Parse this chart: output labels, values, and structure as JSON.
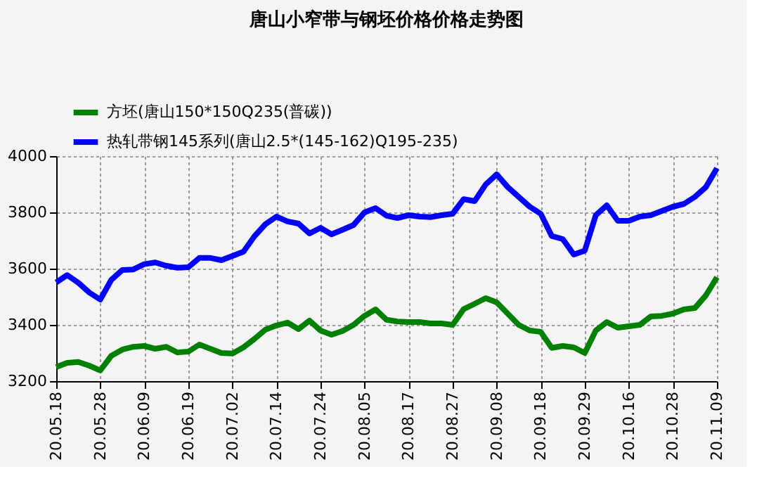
{
  "chart_data": {
    "type": "line",
    "title": "唐山小窄带与钢坯价格价格走势图",
    "categories": [
      "20.05.18",
      null,
      null,
      null,
      "20.05.28",
      null,
      null,
      null,
      "20.06.09",
      null,
      null,
      null,
      "20.06.19",
      null,
      null,
      null,
      "20.07.02",
      null,
      null,
      null,
      "20.07.14",
      null,
      null,
      null,
      "20.07.24",
      null,
      null,
      null,
      "20.08.05",
      null,
      null,
      null,
      "20.08.17",
      null,
      null,
      null,
      "20.08.27",
      null,
      null,
      null,
      "20.09.08",
      null,
      null,
      null,
      "20.09.18",
      null,
      null,
      null,
      "20.09.29",
      null,
      null,
      null,
      "20.10.16",
      null,
      null,
      null,
      "20.10.28",
      null,
      null,
      null,
      "20.11.09"
    ],
    "series": [
      {
        "name": "方坯(唐山150*150Q235(普碳))",
        "color": "#008000",
        "values": [
          3250,
          3265,
          3268,
          3255,
          3238,
          3290,
          3312,
          3322,
          3325,
          3315,
          3322,
          3302,
          3305,
          3330,
          3315,
          3300,
          3298,
          3320,
          3350,
          3383,
          3398,
          3408,
          3385,
          3415,
          3380,
          3365,
          3378,
          3400,
          3432,
          3455,
          3418,
          3412,
          3410,
          3410,
          3405,
          3405,
          3400,
          3456,
          3475,
          3495,
          3480,
          3440,
          3400,
          3380,
          3375,
          3318,
          3325,
          3320,
          3300,
          3380,
          3410,
          3390,
          3395,
          3400,
          3430,
          3432,
          3440,
          3455,
          3460,
          3505,
          3569
        ]
      },
      {
        "name": "热轧带钢145系列(唐山2.5*(145-162)Q195-235)",
        "color": "#0000ff",
        "values": [
          3551,
          3577,
          3550,
          3515,
          3490,
          3560,
          3595,
          3597,
          3616,
          3622,
          3610,
          3603,
          3605,
          3638,
          3638,
          3630,
          3645,
          3660,
          3715,
          3758,
          3785,
          3768,
          3760,
          3725,
          3745,
          3722,
          3738,
          3755,
          3800,
          3815,
          3788,
          3780,
          3790,
          3785,
          3783,
          3790,
          3795,
          3847,
          3840,
          3899,
          3935,
          3890,
          3855,
          3820,
          3795,
          3716,
          3705,
          3650,
          3664,
          3790,
          3825,
          3770,
          3770,
          3785,
          3790,
          3805,
          3820,
          3830,
          3855,
          3890,
          3957
        ]
      }
    ],
    "ylim": [
      3200,
      4000
    ],
    "yticks": [
      3200,
      3400,
      3600,
      3800,
      4000
    ],
    "grid": true,
    "legend": "top left"
  }
}
